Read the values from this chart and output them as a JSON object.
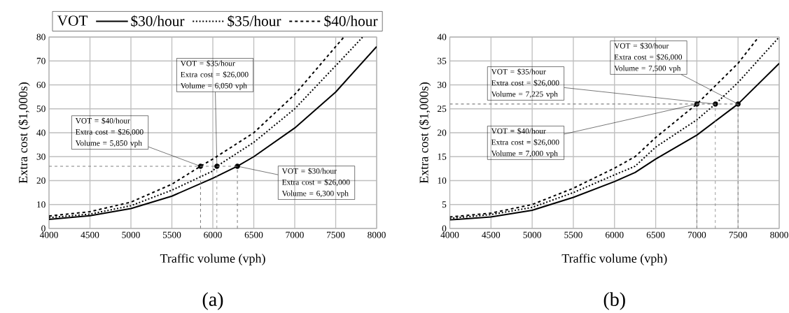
{
  "chart_data": [
    {
      "type": "line",
      "xlabel": "Traffic volume (vph)",
      "ylabel": "Extra cost ($1,000s)",
      "legend_title": "VOT",
      "legend": "top",
      "grid": true,
      "marker": "none",
      "xlim": [
        4000,
        8000
      ],
      "ylim": [
        0,
        80
      ],
      "xticks": [
        4000,
        4500,
        5000,
        5500,
        6000,
        6500,
        7000,
        7500,
        8000
      ],
      "yticks": [
        0,
        10,
        20,
        30,
        40,
        50,
        60,
        70,
        80
      ],
      "series": [
        {
          "name": "$30/hour",
          "color": "#000000",
          "line_style": "solid",
          "x": [
            4000,
            4500,
            5000,
            5500,
            6000,
            6300,
            6500,
            7000,
            7500,
            8000
          ],
          "values": [
            3.8,
            5.3,
            8.3,
            13.5,
            21,
            26,
            30,
            42,
            57,
            76
          ]
        },
        {
          "name": "$35/hour",
          "color": "#000000",
          "line_style": "dotted",
          "x": [
            4000,
            4500,
            5000,
            5500,
            6000,
            6050,
            6500,
            7000,
            7500,
            7830
          ],
          "values": [
            4.5,
            6,
            9.5,
            16,
            24,
            26,
            36,
            50,
            68,
            80
          ]
        },
        {
          "name": "$40/hour",
          "color": "#000000",
          "line_style": "dashed",
          "x": [
            4000,
            4500,
            5000,
            5500,
            5850,
            6000,
            6500,
            7000,
            7500,
            7600
          ],
          "values": [
            5.2,
            7,
            11,
            18.5,
            26,
            29,
            40,
            56,
            76,
            80
          ]
        },
        {
          "type": "scatter",
          "color": "#000000",
          "x": [
            5850,
            6050,
            6300
          ],
          "values": [
            26,
            26,
            26
          ]
        }
      ],
      "ref_lines": [
        {
          "axis": "y",
          "value": 26,
          "color": "#808080",
          "line_style": "dashed"
        },
        {
          "axis": "x",
          "value": 5850,
          "color": "#808080",
          "line_style": "dashed"
        },
        {
          "axis": "x",
          "value": 6050,
          "color": "#808080",
          "line_style": "dashed"
        },
        {
          "axis": "x",
          "value": 6300,
          "color": "#808080",
          "line_style": "dashed"
        }
      ],
      "annotations": [
        {
          "text": "VOT = $35/hour Extra cost = $26,000 Volume = 6,050 vph",
          "x": 6050,
          "y": 26
        },
        {
          "text": "VOT = $40/hour Extra cost = $26,000 Volume = 5,850 vph",
          "x": 5850,
          "y": 26
        },
        {
          "text": "VOT = $30/hour Extra cost = $26,000 Volume = 6,300 vph",
          "x": 6300,
          "y": 26
        },
        "(a)"
      ]
    },
    {
      "type": "line",
      "xlabel": "Traffic volume (vph)",
      "ylabel": "Extra cost ($1,000s)",
      "grid": true,
      "marker": "none",
      "xlim": [
        4000,
        8000
      ],
      "ylim": [
        0,
        40
      ],
      "xticks": [
        4000,
        4500,
        5000,
        5500,
        6000,
        6500,
        7000,
        7500,
        8000
      ],
      "yticks": [
        0,
        5,
        10,
        15,
        20,
        25,
        30,
        35,
        40
      ],
      "series": [
        {
          "color": "#000000",
          "line_style": "solid",
          "x": [
            4000,
            4500,
            5000,
            5500,
            6000,
            6250,
            6500,
            7000,
            7500,
            8000
          ],
          "values": [
            1.8,
            2.4,
            3.8,
            6.5,
            9.8,
            11.7,
            14.5,
            19.5,
            26,
            34.5
          ]
        },
        {
          "color": "#000000",
          "line_style": "dotted",
          "x": [
            4000,
            4500,
            5000,
            5500,
            6000,
            6250,
            6500,
            7000,
            7225,
            7500,
            8000
          ],
          "values": [
            2.1,
            2.9,
            4.4,
            7.5,
            11.2,
            13,
            17,
            22.7,
            26,
            30.5,
            40
          ]
        },
        {
          "color": "#000000",
          "line_style": "dashed",
          "x": [
            4000,
            4500,
            5000,
            5500,
            6000,
            6250,
            6500,
            7000,
            7500,
            7750
          ],
          "values": [
            2.4,
            3.2,
            5,
            8.4,
            12.6,
            15,
            19,
            26,
            34.5,
            40
          ]
        },
        {
          "type": "scatter",
          "color": "#000000",
          "x": [
            7000,
            7225,
            7500
          ],
          "values": [
            26,
            26,
            26
          ]
        }
      ],
      "ref_lines": [
        {
          "axis": "y",
          "value": 26,
          "color": "#808080",
          "line_style": "dashed"
        },
        {
          "axis": "x",
          "value": 7000,
          "color": "#808080",
          "line_style": "dashed"
        },
        {
          "axis": "x",
          "value": 7225,
          "color": "#808080",
          "line_style": "dashed"
        },
        {
          "axis": "x",
          "value": 7500,
          "color": "#808080",
          "line_style": "dashed"
        }
      ],
      "annotations": [
        {
          "text": "VOT = $30/hour Extra cost = $26,000 Volume = 7,500 vph",
          "x": 7500,
          "y": 26
        },
        {
          "text": "VOT = $35/hour Extra cost = $26,000 Volume = 7,225 vph",
          "x": 7225,
          "y": 26
        },
        {
          "text": "VOT = $40/hour Extra cost = $26,000 Volume = 7,000 vph",
          "x": 7000,
          "y": 26
        },
        "(b)"
      ]
    }
  ]
}
